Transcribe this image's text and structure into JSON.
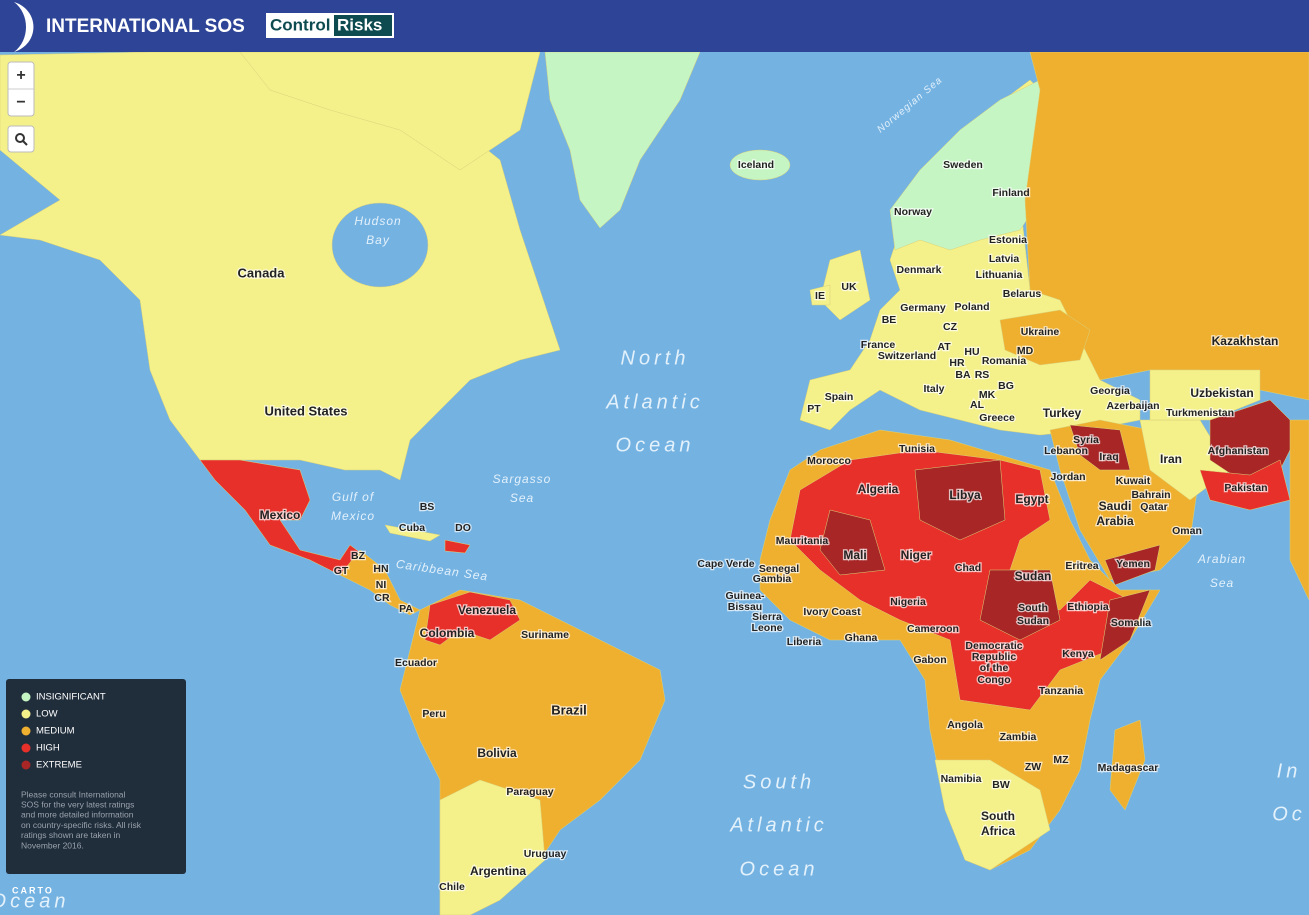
{
  "header": {
    "brand": "INTERNATIONAL SOS",
    "partner_left": "Control",
    "partner_right": "Risks"
  },
  "controls": {
    "zoom_in": "+",
    "zoom_out": "−"
  },
  "country_labels": [
    "Canada",
    "United States",
    "Mexico",
    "Cuba",
    "BS",
    "DO",
    "BZ",
    "GT",
    "HN",
    "NI",
    "CR",
    "PA",
    "Venezuela",
    "Colombia",
    "Suriname",
    "Ecuador",
    "Peru",
    "Brazil",
    "Bolivia",
    "Paraguay",
    "Uruguay",
    "Argentina",
    "Chile",
    "Iceland",
    "Sweden",
    "Finland",
    "Norway",
    "Estonia",
    "Latvia",
    "Denmark",
    "Lithuania",
    "IE",
    "UK",
    "Belarus",
    "Germany",
    "Poland",
    "BE",
    "CZ",
    "Ukraine",
    "France",
    "AT",
    "HU",
    "MD",
    "Switzerland",
    "HR",
    "Romania",
    "BA",
    "RS",
    "BG",
    "Italy",
    "PT",
    "Spain",
    "MK",
    "AL",
    "Greece",
    "Turkey",
    "Georgia",
    "Azerbaijan",
    "Uzbekistan",
    "Turkmenistan",
    "Kazakhstan",
    "Tunisia",
    "Morocco",
    "Algeria",
    "Libya",
    "Egypt",
    "Syria",
    "Lebanon",
    "Iraq",
    "Iran",
    "Afghanistan",
    "Jordan",
    "Kuwait",
    "Bahrain",
    "Qatar",
    "Pakistan",
    "Saudi",
    "Arabia",
    "Oman",
    "Mauritania",
    "Mali",
    "Niger",
    "Cape Verde",
    "Senegal",
    "Gambia",
    "Chad",
    "Sudan",
    "Eritrea",
    "Yemen",
    "Guinea-",
    "Bissau",
    "Sierra",
    "Leone",
    "Liberia",
    "Ivory Coast",
    "Ghana",
    "Nigeria",
    "Cameroon",
    "Ethiopia",
    "South",
    "Sudan",
    "Somalia",
    "Gabon",
    "Democratic",
    "Republic",
    "of the",
    "Congo",
    "Kenya",
    "Tanzania",
    "Angola",
    "Zambia",
    "ZW",
    "MZ",
    "Madagascar",
    "Namibia",
    "BW",
    "South",
    "Africa"
  ],
  "water_labels": [
    "Norwegian Sea",
    "Hudson",
    "Bay",
    "Gulf of",
    "Mexico",
    "Sargasso",
    "Sea",
    "Caribbean Sea",
    "North",
    "Atlantic",
    "Ocean",
    "South",
    "Atlantic",
    "Ocean",
    "Arabian",
    "Sea",
    "In",
    "Oc",
    "Ocean"
  ],
  "legend": {
    "items": [
      {
        "label": "INSIGNIFICANT",
        "color": "#c6f5c4"
      },
      {
        "label": "LOW",
        "color": "#f4f08a"
      },
      {
        "label": "MEDIUM",
        "color": "#efb030"
      },
      {
        "label": "HIGH",
        "color": "#e8302a"
      },
      {
        "label": "EXTREME",
        "color": "#a82626"
      }
    ],
    "note": [
      "Please consult International",
      "SOS for the very latest ratings",
      "and more detailed information",
      "on country-specific risks. All risk",
      "ratings shown are taken in",
      "November 2016."
    ]
  },
  "attribution": "CARTO"
}
